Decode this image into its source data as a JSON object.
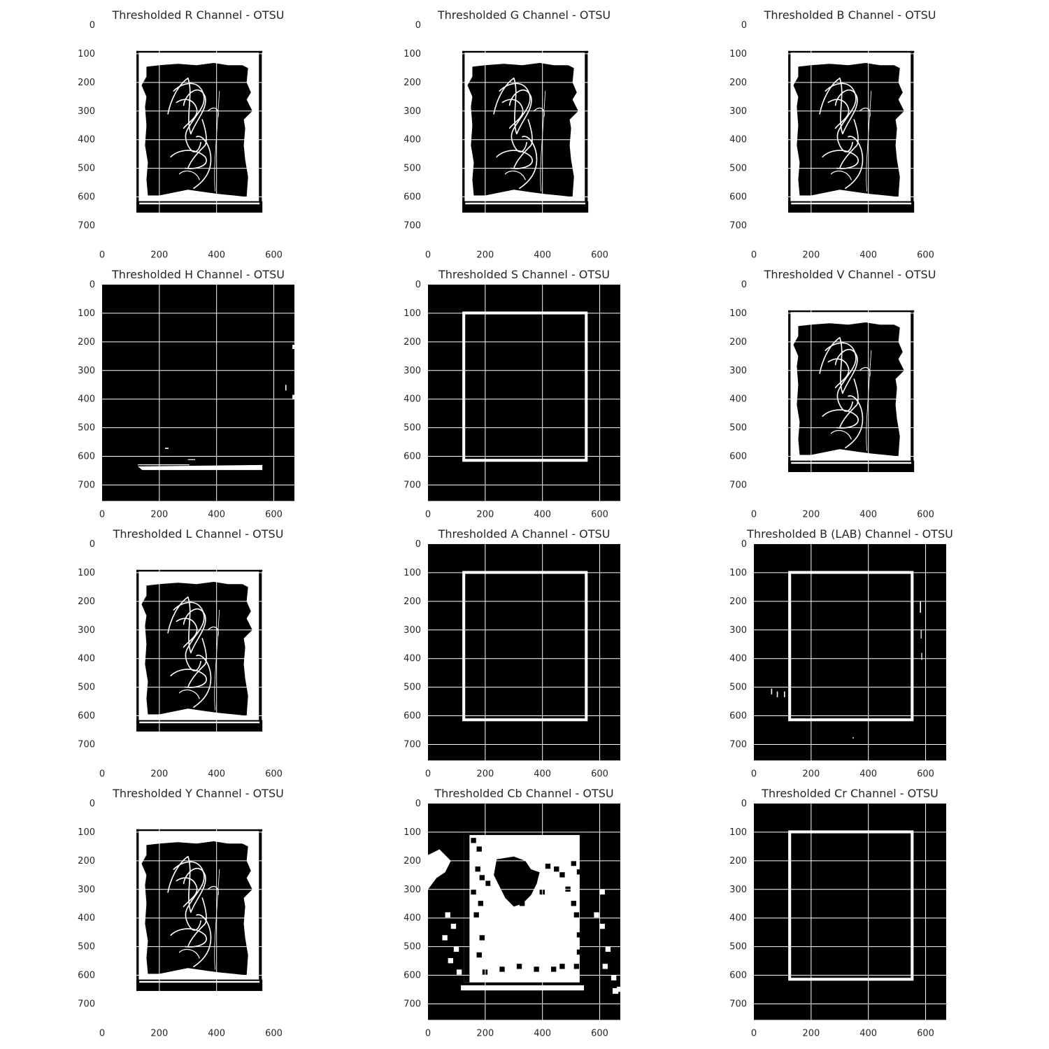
{
  "figure": {
    "colors": {
      "foreground": "#ffffff",
      "background": "#000000",
      "text": "#262626"
    },
    "grid": true,
    "panels": [
      {
        "id": "r",
        "title": "Thresholded R Channel - OTSU",
        "kind": "drawing",
        "xticks": [
          "0",
          "200",
          "400",
          "600"
        ],
        "yticks": [
          "0",
          "100",
          "200",
          "300",
          "400",
          "500",
          "600",
          "700"
        ]
      },
      {
        "id": "g",
        "title": "Thresholded G Channel - OTSU",
        "kind": "drawing",
        "xticks": [
          "0",
          "200",
          "400",
          "600"
        ],
        "yticks": [
          "0",
          "100",
          "200",
          "300",
          "400",
          "500",
          "600",
          "700"
        ]
      },
      {
        "id": "b",
        "title": "Thresholded B Channel - OTSU",
        "kind": "drawing",
        "xticks": [
          "0",
          "200",
          "400",
          "600"
        ],
        "yticks": [
          "0",
          "100",
          "200",
          "300",
          "400",
          "500",
          "600",
          "700"
        ]
      },
      {
        "id": "h",
        "title": "Thresholded H Channel - OTSU",
        "kind": "hue",
        "xticks": [
          "0",
          "200",
          "400",
          "600"
        ],
        "yticks": [
          "0",
          "100",
          "200",
          "300",
          "400",
          "500",
          "600",
          "700"
        ]
      },
      {
        "id": "s",
        "title": "Thresholded S Channel - OTSU",
        "kind": "frame",
        "xticks": [
          "0",
          "200",
          "400",
          "600"
        ],
        "yticks": [
          "0",
          "100",
          "200",
          "300",
          "400",
          "500",
          "600",
          "700"
        ]
      },
      {
        "id": "v",
        "title": "Thresholded V Channel - OTSU",
        "kind": "drawing",
        "xticks": [
          "0",
          "200",
          "400",
          "600"
        ],
        "yticks": [
          "0",
          "100",
          "200",
          "300",
          "400",
          "500",
          "600",
          "700"
        ]
      },
      {
        "id": "l",
        "title": "Thresholded L Channel - OTSU",
        "kind": "drawing",
        "xticks": [
          "0",
          "200",
          "400",
          "600"
        ],
        "yticks": [
          "0",
          "100",
          "200",
          "300",
          "400",
          "500",
          "600",
          "700"
        ]
      },
      {
        "id": "a",
        "title": "Thresholded A Channel - OTSU",
        "kind": "frame",
        "xticks": [
          "0",
          "200",
          "400",
          "600"
        ],
        "yticks": [
          "0",
          "100",
          "200",
          "300",
          "400",
          "500",
          "600",
          "700"
        ]
      },
      {
        "id": "blab",
        "title": "Thresholded B (LAB) Channel - OTSU",
        "kind": "frame-specks",
        "xticks": [
          "0",
          "200",
          "400",
          "600"
        ],
        "yticks": [
          "0",
          "100",
          "200",
          "300",
          "400",
          "500",
          "600",
          "700"
        ]
      },
      {
        "id": "y",
        "title": "Thresholded Y Channel - OTSU",
        "kind": "drawing",
        "xticks": [
          "0",
          "200",
          "400",
          "600"
        ],
        "yticks": [
          "0",
          "100",
          "200",
          "300",
          "400",
          "500",
          "600",
          "700"
        ]
      },
      {
        "id": "cb",
        "title": "Thresholded Cb Channel - OTSU",
        "kind": "blocky",
        "xticks": [
          "0",
          "200",
          "400",
          "600"
        ],
        "yticks": [
          "0",
          "100",
          "200",
          "300",
          "400",
          "500",
          "600",
          "700"
        ]
      },
      {
        "id": "cr",
        "title": "Thresholded Cr Channel - OTSU",
        "kind": "frame",
        "xticks": [
          "0",
          "200",
          "400",
          "600"
        ],
        "yticks": [
          "0",
          "100",
          "200",
          "300",
          "400",
          "500",
          "600",
          "700"
        ]
      }
    ]
  }
}
